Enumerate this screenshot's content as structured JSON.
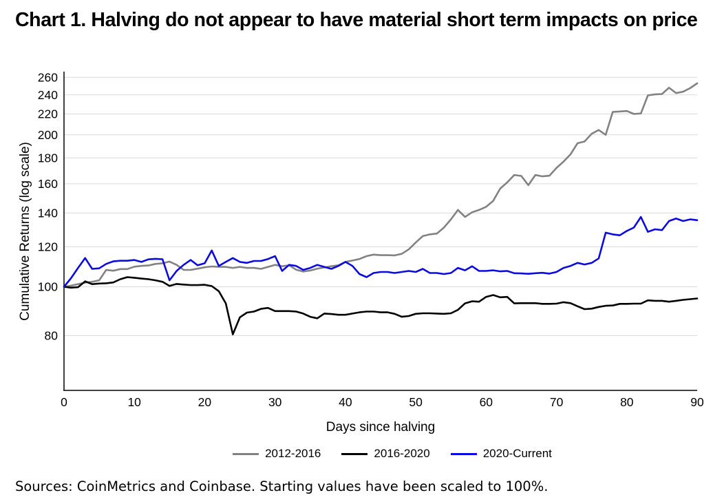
{
  "title": "Chart 1. Halving do not appear to have material short term impacts on price",
  "footer": "Sources: CoinMetrics and Coinbase. Starting values have been scaled to 100%.",
  "colors": {
    "background": "#ffffff",
    "text": "#000000",
    "gridline": "#d9d9d9",
    "axis": "#000000",
    "series_2012_2016": "#828282",
    "series_2016_2020": "#000000",
    "series_2020_current": "#0b0bdf"
  },
  "chart_data": {
    "type": "line",
    "title": "Chart 1. Halving do not appear to have material short term impacts on price",
    "xlabel": "Days since halving",
    "ylabel": "Cumulative Returns (log scale)",
    "y_scale": "log",
    "grid": true,
    "legend_position": "bottom",
    "xlim": [
      0,
      90
    ],
    "ylim": [
      62,
      266
    ],
    "x_ticks": [
      0,
      10,
      20,
      30,
      40,
      50,
      60,
      70,
      80,
      90
    ],
    "y_ticks": [
      80,
      100,
      120,
      140,
      160,
      180,
      200,
      220,
      240,
      260
    ],
    "x": [
      0,
      1,
      2,
      3,
      4,
      5,
      6,
      7,
      8,
      9,
      10,
      11,
      12,
      13,
      14,
      15,
      16,
      17,
      18,
      19,
      20,
      21,
      22,
      23,
      24,
      25,
      26,
      27,
      28,
      29,
      30,
      31,
      32,
      33,
      34,
      35,
      36,
      37,
      38,
      39,
      40,
      41,
      42,
      43,
      44,
      45,
      46,
      47,
      48,
      49,
      50,
      51,
      52,
      53,
      54,
      55,
      56,
      57,
      58,
      59,
      60,
      61,
      62,
      63,
      64,
      65,
      66,
      67,
      68,
      69,
      70,
      71,
      72,
      73,
      74,
      75,
      76,
      77,
      78,
      79,
      80,
      81,
      82,
      83,
      84,
      85,
      86,
      87,
      88,
      89,
      90
    ],
    "series": [
      {
        "name": "2012-2016",
        "color": "#828282",
        "values": [
          100,
          100.5,
          101.2,
          101.9,
          102.3,
          103,
          108,
          107.6,
          108.4,
          108.4,
          109.6,
          110,
          110.2,
          111,
          111.3,
          112.2,
          110.5,
          108,
          108,
          108.6,
          109.3,
          109.7,
          109.5,
          109.5,
          109,
          109.5,
          109,
          109,
          108.5,
          109.5,
          110.5,
          109.8,
          110.3,
          108.1,
          107.2,
          107.7,
          108.6,
          109.2,
          109.8,
          110.3,
          112,
          112.7,
          113.5,
          115,
          115.8,
          115.5,
          115.5,
          115.4,
          116.2,
          118.6,
          122.4,
          126,
          127,
          127.5,
          131,
          136,
          142,
          137.5,
          140.5,
          142,
          144,
          148,
          156.5,
          161,
          166.5,
          165.8,
          159,
          166.5,
          165.5,
          166,
          172,
          177,
          183,
          192.5,
          194,
          201,
          204.5,
          200,
          222,
          222.5,
          223,
          220,
          220.5,
          239.5,
          240.5,
          241,
          248,
          242,
          243.5,
          247.5,
          253
        ]
      },
      {
        "name": "2016-2020",
        "color": "#000000",
        "values": [
          100,
          99.6,
          99.8,
          102.5,
          101.2,
          101.5,
          101.6,
          102,
          103.5,
          104.5,
          104.2,
          103.8,
          103.5,
          103,
          102.3,
          100.4,
          101.3,
          101,
          100.8,
          100.8,
          100.9,
          100.3,
          98,
          92.7,
          80.5,
          87,
          88.9,
          89.3,
          90.4,
          90.8,
          89.5,
          89.5,
          89.5,
          89.3,
          88.5,
          87.2,
          86.6,
          88.5,
          88.3,
          88,
          88,
          88.5,
          89,
          89.3,
          89.3,
          89,
          89,
          88.4,
          87.2,
          87.5,
          88.4,
          88.6,
          88.6,
          88.5,
          88.4,
          88.6,
          90,
          92.7,
          93.6,
          93.4,
          95.5,
          96.3,
          95.3,
          95.5,
          92.7,
          92.8,
          92.8,
          92.8,
          92.5,
          92.5,
          92.6,
          93.2,
          92.8,
          91.5,
          90.3,
          90.5,
          91.2,
          91.7,
          91.8,
          92.5,
          92.5,
          92.6,
          92.6,
          94,
          93.8,
          93.8,
          93.4,
          93.8,
          94.2,
          94.5,
          94.8
        ]
      },
      {
        "name": "2020-Current",
        "color": "#0b0bdf",
        "values": [
          100,
          104,
          109,
          114,
          108.5,
          108.8,
          111,
          112.3,
          112.6,
          112.6,
          113,
          112,
          113.3,
          113.6,
          113.4,
          103,
          107.5,
          110.5,
          113,
          110.3,
          111.3,
          118,
          110,
          112,
          114,
          112,
          111.5,
          112.5,
          112.5,
          113.5,
          115,
          107.5,
          110.5,
          110,
          108,
          109,
          110.5,
          109.5,
          108.5,
          110,
          112,
          110,
          106,
          104.5,
          106.5,
          107,
          107,
          106.5,
          107,
          107.5,
          107,
          108.5,
          106.5,
          106.5,
          106,
          106.5,
          109,
          107.8,
          109.8,
          107.5,
          107.5,
          107.8,
          107.3,
          107.5,
          106.4,
          106.3,
          106.1,
          106.4,
          106.6,
          106.2,
          107,
          109,
          110,
          111.5,
          110.7,
          111.5,
          113.8,
          128,
          127,
          126.5,
          129,
          131,
          137.5,
          128.5,
          130,
          129.5,
          135,
          136.5,
          135,
          136,
          135.5
        ]
      }
    ]
  }
}
